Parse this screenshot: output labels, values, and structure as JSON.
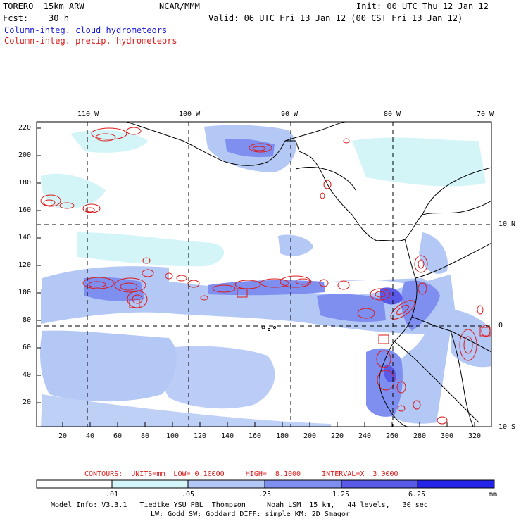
{
  "header": {
    "model": "TORERO  15km ARW",
    "center": "NCAR/MMM",
    "init": "Init: 00 UTC Thu 12 Jan 12",
    "fcst": "Fcst:    30 h",
    "valid": "Valid: 06 UTC Fri 13 Jan 12 (00 CST Fri 13 Jan 12)",
    "field_blue": "Column-integ. cloud hydrometeors",
    "field_red": "Column-integ. precip. hydrometeors"
  },
  "axes": {
    "top_labels": [
      "110 W",
      "100 W",
      "90 W",
      "80 W",
      "70 W"
    ],
    "right_labels": [
      "10 N",
      "0",
      "10 S"
    ],
    "left_ticks": [
      "220",
      "200",
      "180",
      "160",
      "140",
      "120",
      "100",
      "80",
      "60",
      "40",
      "20"
    ],
    "bottom_ticks": [
      "20",
      "40",
      "60",
      "80",
      "100",
      "120",
      "140",
      "160",
      "180",
      "200",
      "220",
      "240",
      "260",
      "280",
      "300",
      "320"
    ]
  },
  "contour_info": {
    "text": "CONTOURS:  UNITS=mm  LOW= 0.10000     HIGH=  8.1000     INTERVAL=X  3.0000"
  },
  "colorbar": {
    "labels": [
      ".01",
      ".05",
      ".25",
      "1.25",
      "6.25"
    ],
    "unit": "mm",
    "colors": [
      "#ffffff",
      "#d4f5f8",
      "#b4c8f6",
      "#7f8ff0",
      "#5a5ae8",
      "#2424e8"
    ]
  },
  "footer": {
    "line1": "Model Info: V3.3.1   Tiedtke YSU PBL  Thompson     Noah LSM  15 km,   44 levels,   30 sec",
    "line2": "LW: Godd SW: Goddard DIFF: simple KM: 2D Smagor"
  }
}
